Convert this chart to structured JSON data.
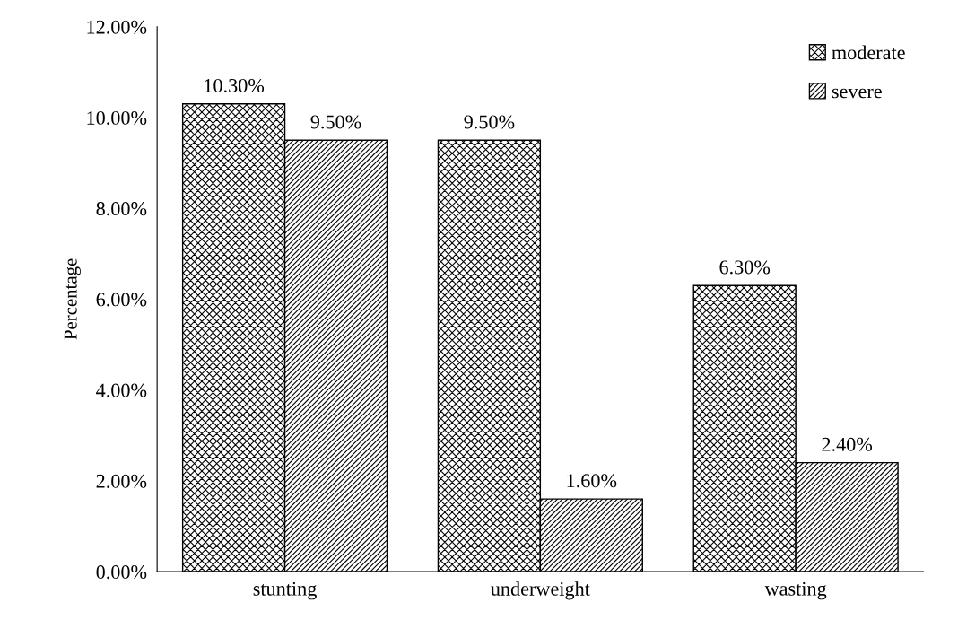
{
  "chart_data": {
    "type": "bar",
    "ylabel": "Percentage",
    "categories": [
      "stunting",
      "underweight",
      "wasting"
    ],
    "series": [
      {
        "name": "moderate",
        "color": "#000000",
        "values": [
          10.3,
          9.5,
          6.3
        ],
        "value_labels": [
          "10.30%",
          "9.50%",
          "6.30%"
        ]
      },
      {
        "name": "severe",
        "color": "#000000",
        "values": [
          9.5,
          1.6,
          2.4
        ],
        "value_labels": [
          "9.50%",
          "1.60%",
          "2.40%"
        ]
      }
    ],
    "ylim": [
      0,
      12
    ],
    "yticks": [
      {
        "value": 0,
        "label": "0.00%"
      },
      {
        "value": 2,
        "label": "2.00%"
      },
      {
        "value": 4,
        "label": "4.00%"
      },
      {
        "value": 6,
        "label": "6.00%"
      },
      {
        "value": 8,
        "label": "8.00%"
      },
      {
        "value": 10,
        "label": "10.00%"
      },
      {
        "value": 12,
        "label": "12.00%"
      }
    ],
    "grid": false,
    "legend": "top right"
  }
}
